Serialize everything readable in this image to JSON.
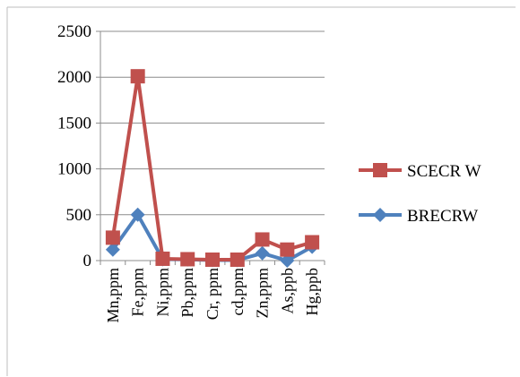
{
  "chart_data": {
    "type": "line",
    "categories": [
      "Mn,ppm",
      "Fe,ppm",
      "Ni,ppm",
      "Pb,ppm",
      "Cr, ppm",
      "cd,ppm",
      "Zn,ppm",
      "As,ppb",
      "Hg,ppb"
    ],
    "series": [
      {
        "name": "SCECR W",
        "color": "#c0504d",
        "marker": "square",
        "values": [
          250,
          2010,
          20,
          15,
          10,
          10,
          230,
          120,
          200
        ]
      },
      {
        "name": "BRECRW",
        "color": "#4f81bd",
        "marker": "diamond",
        "values": [
          120,
          500,
          15,
          12,
          5,
          5,
          80,
          0,
          150
        ]
      }
    ],
    "yticks": [
      0,
      500,
      1000,
      1500,
      2000,
      2500
    ],
    "ylim": [
      0,
      2500
    ],
    "grid": true,
    "legend_position": "right"
  }
}
